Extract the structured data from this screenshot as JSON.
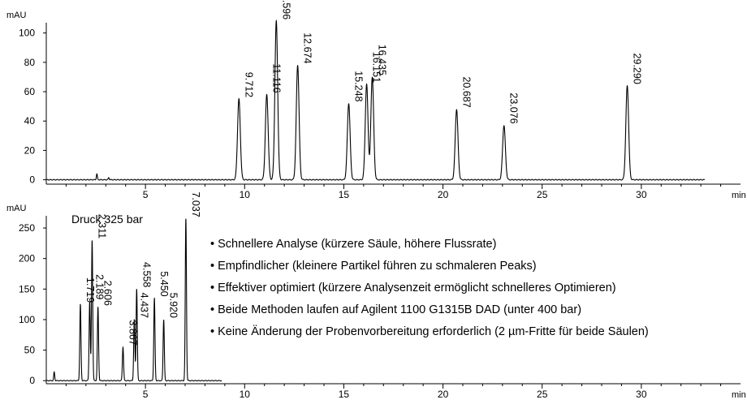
{
  "chart_data": [
    {
      "type": "line",
      "ylabel": "mAU",
      "xlabel": "min",
      "xlim": [
        0,
        35
      ],
      "ylim": [
        -3,
        107
      ],
      "x_ticks": [
        5,
        10,
        15,
        20,
        25,
        30
      ],
      "y_ticks": [
        0,
        20,
        40,
        60,
        80,
        100
      ],
      "baseline": 0,
      "trace_end_x": 33.2,
      "peaks": [
        {
          "label": "9.712",
          "x": 9.712,
          "y": 55
        },
        {
          "label": "11.116",
          "x": 11.116,
          "y": 58
        },
        {
          "label": "11.596",
          "x": 11.596,
          "y": 108
        },
        {
          "label": "12.674",
          "x": 12.674,
          "y": 78
        },
        {
          "label": "15.248",
          "x": 15.248,
          "y": 52
        },
        {
          "label": "16.151",
          "x": 16.151,
          "y": 65
        },
        {
          "label": "16.435",
          "x": 16.435,
          "y": 70
        },
        {
          "label": "20.687",
          "x": 20.687,
          "y": 48
        },
        {
          "label": "23.076",
          "x": 23.076,
          "y": 37
        },
        {
          "label": "29.290",
          "x": 29.29,
          "y": 64
        }
      ],
      "artifacts": [
        {
          "x": 2.55,
          "y": 4
        },
        {
          "x": 3.15,
          "y": 1.5
        }
      ]
    },
    {
      "type": "line",
      "ylabel": "mAU",
      "xlabel": "min",
      "xlim": [
        0,
        35
      ],
      "ylim": [
        -5,
        270
      ],
      "x_ticks": [
        5,
        10,
        15,
        20,
        25,
        30
      ],
      "y_ticks": [
        0,
        50,
        100,
        150,
        200,
        250
      ],
      "baseline": 0,
      "trace_end_x": 8.85,
      "annotation": "Druck 325 bar",
      "peaks": [
        {
          "label": "1.719",
          "x": 1.719,
          "y": 125
        },
        {
          "label": "2.189",
          "x": 2.189,
          "y": 130
        },
        {
          "label": "2.311",
          "x": 2.311,
          "y": 230
        },
        {
          "label": "2.606",
          "x": 2.606,
          "y": 120
        },
        {
          "label": "3.867",
          "x": 3.867,
          "y": 55
        },
        {
          "label": "4.437",
          "x": 4.437,
          "y": 100
        },
        {
          "label": "4.558",
          "x": 4.558,
          "y": 150
        },
        {
          "label": "5.450",
          "x": 5.45,
          "y": 135
        },
        {
          "label": "5.920",
          "x": 5.92,
          "y": 100
        },
        {
          "label": "7.037",
          "x": 7.037,
          "y": 265
        }
      ],
      "artifacts": [
        {
          "x": 0.4,
          "y": 14
        }
      ]
    }
  ],
  "notes": [
    "Schnellere Analyse (kürzere Säule, höhere Flussrate)",
    "Empfindlicher (kleinere Partikel führen zu schmaleren Peaks)",
    "Effektiver optimiert (kürzere Analysenzeit ermöglicht schnelleres Optimieren)",
    "Beide Methoden laufen auf Agilent 1100 G1315B DAD (unter 400 bar)",
    "Keine Änderung der Probenvorbereitung erforderlich (2 µm-Fritte für beide Säulen)"
  ]
}
